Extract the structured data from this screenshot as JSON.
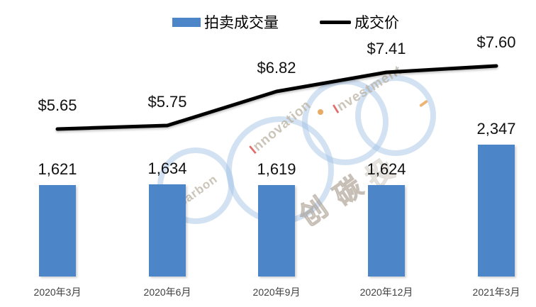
{
  "chart_data": {
    "type": "combo",
    "categories": [
      "2020年3月",
      "2020年6月",
      "2020年9月",
      "2020年12月",
      "2021年3月"
    ],
    "series": [
      {
        "name": "拍卖成交量",
        "type": "bar",
        "values": [
          1621,
          1634,
          1619,
          1624,
          2347
        ],
        "labels": [
          "1,621",
          "1,634",
          "1,619",
          "1,624",
          "2,347"
        ],
        "color": "#4d86c8"
      },
      {
        "name": "成交价",
        "type": "line",
        "values": [
          5.65,
          5.75,
          6.82,
          7.41,
          7.6
        ],
        "labels": [
          "$5.65",
          "$5.75",
          "$6.82",
          "$7.41",
          "$7.60"
        ],
        "color": "#000000"
      }
    ],
    "title": "",
    "xlabel": "",
    "ylabel": "",
    "legend_position": "top",
    "grid": false,
    "axes_visible": false
  },
  "watermark": {
    "brand_texts": [
      "SinoCarbon",
      "Innovation",
      "Investment"
    ],
    "cjk_chars": [
      "创",
      "碳",
      "投"
    ],
    "ring_color": "#9ebfe4",
    "text_color": "#bab0a0",
    "accent_red": "#d95555",
    "accent_orange": "#e2963c"
  }
}
